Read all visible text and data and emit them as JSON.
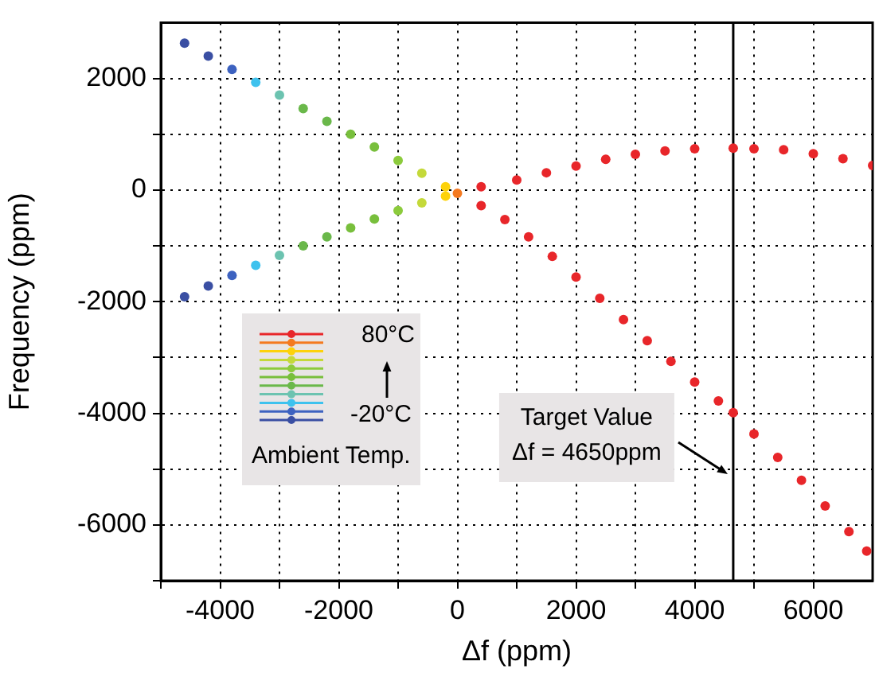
{
  "chart_data": {
    "type": "scatter",
    "xlabel": "Δf (ppm)",
    "ylabel": "Frequency (ppm)",
    "xlim": [
      -5000,
      7000
    ],
    "ylim": [
      -7000,
      3000
    ],
    "xticks": [
      {
        "value": -5000,
        "label": null
      },
      -4000,
      {
        "value": -3000,
        "label": null
      },
      -2000,
      {
        "value": -1000,
        "label": null
      },
      0,
      {
        "value": 1000,
        "label": null
      },
      2000,
      {
        "value": 3000,
        "label": null
      },
      4000,
      {
        "value": 5000,
        "label": null
      },
      6000
    ],
    "yticks": [
      {
        "value": -7000,
        "label": null
      },
      -6000,
      {
        "value": -5000,
        "label": null
      },
      -4000,
      {
        "value": -3000,
        "label": null
      },
      -2000,
      {
        "value": -1000,
        "label": null
      },
      0,
      {
        "value": 1000,
        "label": null
      },
      2000
    ],
    "grid": true,
    "marker": "circle",
    "legend": false,
    "annotations": [
      "80°C",
      "-20°C",
      "Ambient Temp."
    ],
    "series": [
      {
        "x": [
          -4600,
          -4200,
          -3800,
          -3400,
          -3000,
          -2600,
          -2200,
          -1800,
          -1400,
          -1000,
          -600,
          -200,
          0,
          400,
          800,
          1200,
          1600,
          2000,
          2400,
          2800,
          3200,
          3600,
          4000,
          4400,
          4650,
          5000,
          5400,
          5800,
          6200,
          6600,
          6900
        ],
        "values": [
          2630,
          2400,
          2160,
          1930,
          1700,
          1460,
          1230,
          1000,
          770,
          530,
          300,
          60,
          -60,
          -280,
          -530,
          -840,
          -1190,
          -1560,
          -1940,
          -2320,
          -2700,
          -3070,
          -3440,
          -3780,
          -3990,
          -4370,
          -4790,
          -5200,
          -5660,
          -6120,
          -6470
        ],
        "colors": [
          "#3a4fa3",
          "#3a4fa3",
          "#3d62c0",
          "#3ec2ee",
          "#6cc3b0",
          "#6ab84a",
          "#6ab84a",
          "#78bf3c",
          "#78bf3c",
          "#8ccb3c",
          "#c4d93a",
          "#fdd20a",
          "#f47a20",
          "#e8262a",
          "#e8262a",
          "#e8262a",
          "#e8262a",
          "#e8262a",
          "#e8262a",
          "#e8262a",
          "#e8262a",
          "#e8262a",
          "#e8262a",
          "#e8262a",
          "#e8262a",
          "#e8262a",
          "#e8262a",
          "#e8262a",
          "#e8262a",
          "#e8262a",
          "#e8262a"
        ]
      },
      {
        "x": [
          -4600,
          -4200,
          -3800,
          -3400,
          -3000,
          -2600,
          -2200,
          -1800,
          -1400,
          -1000,
          -600,
          -200,
          400,
          1000,
          1500,
          2000,
          2500,
          3000,
          3500,
          4000,
          4650,
          5000,
          5500,
          6000,
          6500,
          7000
        ],
        "values": [
          -1910,
          -1720,
          -1530,
          -1350,
          -1170,
          -1000,
          -840,
          -680,
          -520,
          -370,
          -230,
          -110,
          60,
          180,
          310,
          430,
          550,
          640,
          700,
          740,
          750,
          740,
          720,
          650,
          560,
          440
        ],
        "colors": [
          "#3a4fa3",
          "#3a4fa3",
          "#3d62c0",
          "#3ec2ee",
          "#6cc3b0",
          "#6ab84a",
          "#6ab84a",
          "#78bf3c",
          "#78bf3c",
          "#8ccb3c",
          "#c4d93a",
          "#fdd20a",
          "#e8262a",
          "#e8262a",
          "#e8262a",
          "#e8262a",
          "#e8262a",
          "#e8262a",
          "#e8262a",
          "#e8262a",
          "#e8262a",
          "#e8262a",
          "#e8262a",
          "#e8262a",
          "#e8262a",
          "#e8262a"
        ]
      }
    ],
    "ref_lines": [
      {
        "axis": "x",
        "value": 4650,
        "label": "Target Value\nΔf = 4650ppm",
        "color": "#000000"
      }
    ]
  }
}
